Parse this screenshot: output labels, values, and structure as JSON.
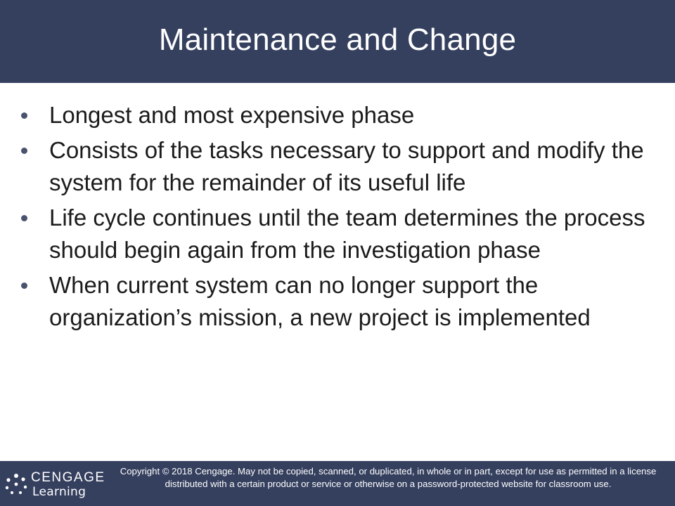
{
  "slide": {
    "title": "Maintenance and Change",
    "bullets": [
      "Longest and most expensive phase",
      "Consists of the tasks necessary to support and modify the system for the remainder of its useful life",
      "Life cycle continues until the team determines the process should begin again from the investigation phase",
      "When current system can no longer support the organization’s mission, a new project is implemented"
    ]
  },
  "footer": {
    "logo_brand": "CENGAGE",
    "logo_sub": "Learning",
    "copyright": "Copyright © 2018 Cengage. May not be copied, scanned, or duplicated, in whole or in part, except for use as permitted in a license distributed with a certain product or service or otherwise on a password-protected website for classroom use."
  },
  "colors": {
    "bar": "#35405f",
    "text": "#1b1b1b",
    "bullet": "#4a536e"
  }
}
